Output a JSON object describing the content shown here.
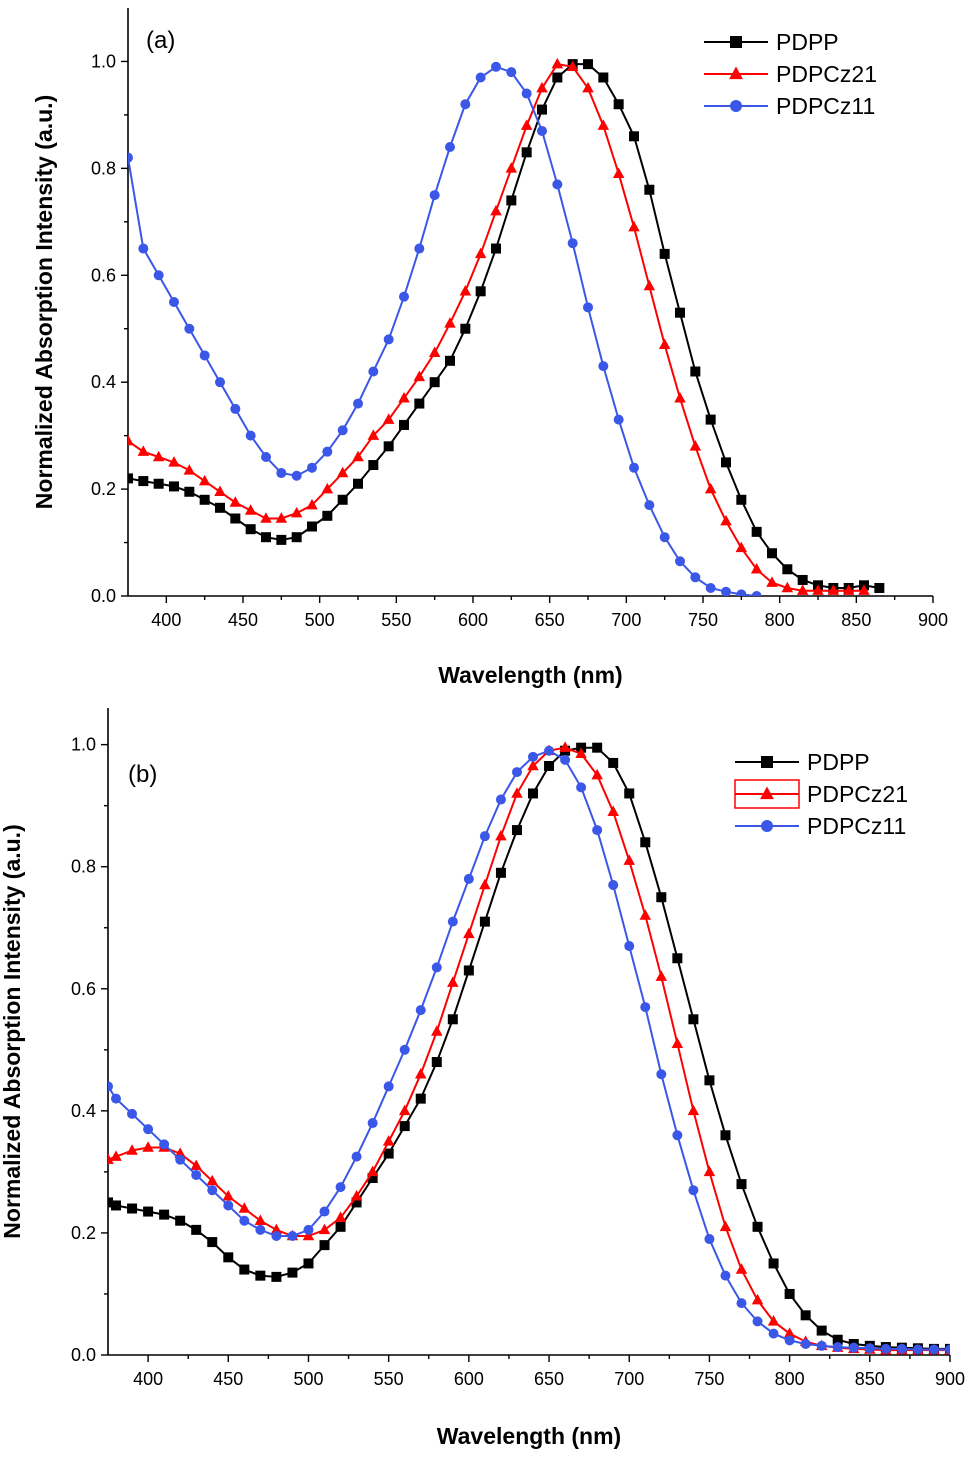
{
  "chart_data": [
    {
      "type": "line",
      "panel_label": "(a)",
      "xlabel": "Wavelength (nm)",
      "ylabel": "Normalized Absorption Intensity (a.u.)",
      "xlim": [
        375,
        900
      ],
      "ylim": [
        0,
        1.1
      ],
      "xticks": [
        400,
        450,
        500,
        550,
        600,
        650,
        700,
        750,
        800,
        850,
        900
      ],
      "yticks": [
        0.0,
        0.2,
        0.4,
        0.6,
        0.8,
        1.0
      ],
      "ytick_labels": [
        "0.0",
        "0.2",
        "0.4",
        "0.6",
        "0.8",
        "1.0"
      ],
      "legend_position": "top-right",
      "series": [
        {
          "name": "PDPP",
          "color": "#000000",
          "marker": "square",
          "x": [
            375,
            385,
            395,
            405,
            415,
            425,
            435,
            445,
            455,
            465,
            475,
            485,
            495,
            505,
            515,
            525,
            535,
            545,
            555,
            565,
            575,
            585,
            595,
            605,
            615,
            625,
            635,
            645,
            655,
            665,
            675,
            685,
            695,
            705,
            715,
            725,
            735,
            745,
            755,
            765,
            775,
            785,
            795,
            805,
            815,
            825,
            835,
            845,
            855,
            865
          ],
          "y": [
            0.22,
            0.215,
            0.21,
            0.205,
            0.195,
            0.18,
            0.165,
            0.145,
            0.125,
            0.11,
            0.105,
            0.11,
            0.13,
            0.15,
            0.18,
            0.21,
            0.245,
            0.28,
            0.32,
            0.36,
            0.4,
            0.44,
            0.5,
            0.57,
            0.65,
            0.74,
            0.83,
            0.91,
            0.97,
            0.995,
            0.995,
            0.97,
            0.92,
            0.86,
            0.76,
            0.64,
            0.53,
            0.42,
            0.33,
            0.25,
            0.18,
            0.12,
            0.08,
            0.05,
            0.03,
            0.02,
            0.015,
            0.015,
            0.02,
            0.015
          ]
        },
        {
          "name": "PDPCz21",
          "color": "#ff0000",
          "marker": "triangle",
          "x": [
            375,
            385,
            395,
            405,
            415,
            425,
            435,
            445,
            455,
            465,
            475,
            485,
            495,
            505,
            515,
            525,
            535,
            545,
            555,
            565,
            575,
            585,
            595,
            605,
            615,
            625,
            635,
            645,
            655,
            665,
            675,
            685,
            695,
            705,
            715,
            725,
            735,
            745,
            755,
            765,
            775,
            785,
            795,
            805,
            815,
            825,
            835,
            845,
            855
          ],
          "y": [
            0.29,
            0.27,
            0.26,
            0.25,
            0.235,
            0.215,
            0.195,
            0.175,
            0.16,
            0.145,
            0.145,
            0.155,
            0.17,
            0.2,
            0.23,
            0.26,
            0.3,
            0.33,
            0.37,
            0.41,
            0.455,
            0.51,
            0.57,
            0.64,
            0.72,
            0.8,
            0.88,
            0.95,
            0.995,
            0.99,
            0.95,
            0.88,
            0.79,
            0.69,
            0.58,
            0.47,
            0.37,
            0.28,
            0.2,
            0.14,
            0.09,
            0.05,
            0.025,
            0.015,
            0.01,
            0.01,
            0.01,
            0.01,
            0.01
          ]
        },
        {
          "name": "PDPCz11",
          "color": "#3a57e8",
          "marker": "circle",
          "x": [
            375,
            385,
            395,
            405,
            415,
            425,
            435,
            445,
            455,
            465,
            475,
            485,
            495,
            505,
            515,
            525,
            535,
            545,
            555,
            565,
            575,
            585,
            595,
            605,
            615,
            625,
            635,
            645,
            655,
            665,
            675,
            685,
            695,
            705,
            715,
            725,
            735,
            745,
            755,
            765,
            775,
            785
          ],
          "y": [
            0.82,
            0.65,
            0.6,
            0.55,
            0.5,
            0.45,
            0.4,
            0.35,
            0.3,
            0.26,
            0.23,
            0.225,
            0.24,
            0.27,
            0.31,
            0.36,
            0.42,
            0.48,
            0.56,
            0.65,
            0.75,
            0.84,
            0.92,
            0.97,
            0.99,
            0.98,
            0.94,
            0.87,
            0.77,
            0.66,
            0.54,
            0.43,
            0.33,
            0.24,
            0.17,
            0.11,
            0.065,
            0.035,
            0.015,
            0.008,
            0.003,
            0.0
          ]
        }
      ]
    },
    {
      "type": "line",
      "panel_label": "(b)",
      "xlabel": "Wavelength (nm)",
      "ylabel": "Normalized Absorption Intensity (a.u.)",
      "xlim": [
        375,
        900
      ],
      "ylim": [
        0,
        1.06
      ],
      "xticks": [
        400,
        450,
        500,
        550,
        600,
        650,
        700,
        750,
        800,
        850,
        900
      ],
      "yticks": [
        0.0,
        0.2,
        0.4,
        0.6,
        0.8,
        1.0
      ],
      "ytick_labels": [
        "0.0",
        "0.2",
        "0.4",
        "0.6",
        "0.8",
        "1.0"
      ],
      "legend_position": "top-right",
      "series": [
        {
          "name": "PDPP",
          "color": "#000000",
          "marker": "square",
          "x": [
            375,
            380,
            390,
            400,
            410,
            420,
            430,
            440,
            450,
            460,
            470,
            480,
            490,
            500,
            510,
            520,
            530,
            540,
            550,
            560,
            570,
            580,
            590,
            600,
            610,
            620,
            630,
            640,
            650,
            660,
            670,
            680,
            690,
            700,
            710,
            720,
            730,
            740,
            750,
            760,
            770,
            780,
            790,
            800,
            810,
            820,
            830,
            840,
            850,
            860,
            870,
            880,
            890,
            900
          ],
          "y": [
            0.25,
            0.245,
            0.24,
            0.235,
            0.23,
            0.22,
            0.205,
            0.185,
            0.16,
            0.14,
            0.13,
            0.128,
            0.135,
            0.15,
            0.18,
            0.21,
            0.25,
            0.29,
            0.33,
            0.375,
            0.42,
            0.48,
            0.55,
            0.63,
            0.71,
            0.79,
            0.86,
            0.92,
            0.965,
            0.99,
            0.995,
            0.995,
            0.97,
            0.92,
            0.84,
            0.75,
            0.65,
            0.55,
            0.45,
            0.36,
            0.28,
            0.21,
            0.15,
            0.1,
            0.065,
            0.04,
            0.025,
            0.018,
            0.015,
            0.013,
            0.012,
            0.011,
            0.01,
            0.01
          ]
        },
        {
          "name": "PDPCz21",
          "color": "#ff0000",
          "marker": "triangle",
          "x": [
            375,
            380,
            390,
            400,
            410,
            420,
            430,
            440,
            450,
            460,
            470,
            480,
            490,
            500,
            510,
            520,
            530,
            540,
            550,
            560,
            570,
            580,
            590,
            600,
            610,
            620,
            630,
            640,
            650,
            660,
            670,
            680,
            690,
            700,
            710,
            720,
            730,
            740,
            750,
            760,
            770,
            780,
            790,
            800,
            810,
            820,
            830,
            840,
            850,
            860,
            870,
            880,
            890,
            900
          ],
          "y": [
            0.32,
            0.325,
            0.335,
            0.34,
            0.34,
            0.33,
            0.31,
            0.285,
            0.26,
            0.24,
            0.22,
            0.205,
            0.195,
            0.195,
            0.205,
            0.225,
            0.26,
            0.3,
            0.35,
            0.4,
            0.46,
            0.53,
            0.61,
            0.69,
            0.77,
            0.85,
            0.92,
            0.965,
            0.99,
            0.995,
            0.985,
            0.95,
            0.89,
            0.81,
            0.72,
            0.62,
            0.51,
            0.4,
            0.3,
            0.21,
            0.14,
            0.09,
            0.055,
            0.035,
            0.022,
            0.015,
            0.012,
            0.01,
            0.009,
            0.008,
            0.008,
            0.008,
            0.008,
            0.008
          ]
        },
        {
          "name": "PDPCz11",
          "color": "#3a57e8",
          "marker": "circle",
          "x": [
            375,
            380,
            390,
            400,
            410,
            420,
            430,
            440,
            450,
            460,
            470,
            480,
            490,
            500,
            510,
            520,
            530,
            540,
            550,
            560,
            570,
            580,
            590,
            600,
            610,
            620,
            630,
            640,
            650,
            660,
            670,
            680,
            690,
            700,
            710,
            720,
            730,
            740,
            750,
            760,
            770,
            780,
            790,
            800,
            810,
            820,
            830,
            840,
            850,
            860,
            870,
            880,
            890,
            900
          ],
          "y": [
            0.44,
            0.42,
            0.395,
            0.37,
            0.345,
            0.32,
            0.295,
            0.27,
            0.245,
            0.22,
            0.205,
            0.195,
            0.195,
            0.205,
            0.235,
            0.275,
            0.325,
            0.38,
            0.44,
            0.5,
            0.565,
            0.635,
            0.71,
            0.78,
            0.85,
            0.91,
            0.955,
            0.98,
            0.99,
            0.975,
            0.93,
            0.86,
            0.77,
            0.67,
            0.57,
            0.46,
            0.36,
            0.27,
            0.19,
            0.13,
            0.085,
            0.055,
            0.035,
            0.024,
            0.018,
            0.015,
            0.013,
            0.012,
            0.011,
            0.01,
            0.01,
            0.009,
            0.009,
            0.009
          ]
        }
      ]
    }
  ]
}
